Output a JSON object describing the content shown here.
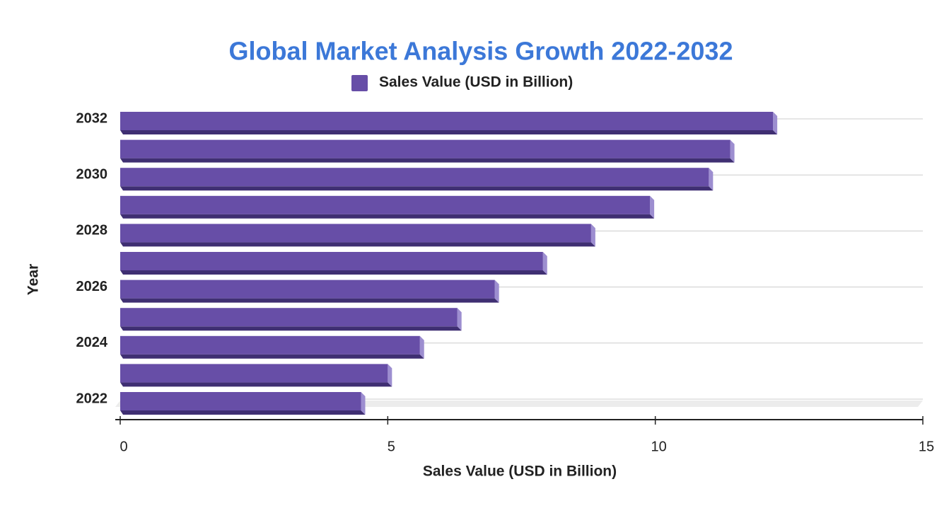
{
  "chart_data": {
    "type": "bar",
    "orientation": "horizontal",
    "title": "Global Market Analysis Growth 2022-2032",
    "x_label": "Sales Value (USD in Billion)",
    "y_label": "Year",
    "categories": [
      "2032",
      null,
      "2030",
      null,
      "2028",
      null,
      "2026",
      null,
      "2024",
      null,
      "2022"
    ],
    "series": [
      {
        "name": "Sales Value (USD in Billion)",
        "color": "#674ea7",
        "values": [
          12.2,
          11.4,
          11.0,
          9.9,
          8.8,
          7.9,
          7.0,
          6.3,
          5.6,
          5.0,
          4.5
        ]
      }
    ],
    "xlim": [
      0,
      15
    ],
    "xticks": [
      0,
      5,
      10,
      15
    ],
    "legend": "top"
  }
}
